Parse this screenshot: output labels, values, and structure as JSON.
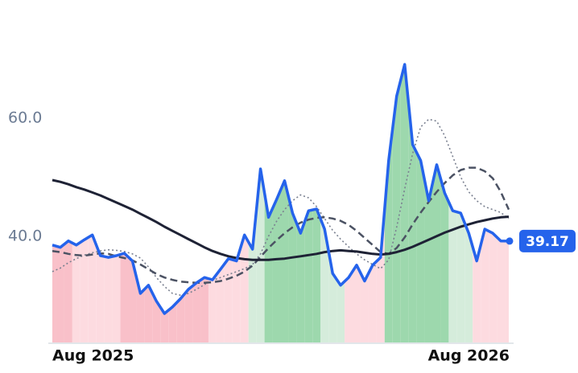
{
  "chart_data": {
    "type": "line",
    "xlim": [
      0,
      57
    ],
    "xticks": [
      {
        "value": 0,
        "label": "Aug 2025"
      },
      {
        "value": 52,
        "label": "Aug 2026"
      }
    ],
    "ylim": [
      22,
      80
    ],
    "yticks": [
      {
        "value": 40,
        "label": "40.0"
      },
      {
        "value": 60,
        "label": "60.0"
      }
    ],
    "grid": false,
    "label_last": true,
    "regime_colors": [
      "#f9c0c9",
      "#f9c0c9",
      "#f9c0c9",
      "#fddbe0",
      "#fddbe0",
      "#fddbe0",
      "#fddbe0",
      "#fddbe0",
      "#fddbe0",
      "#f9c0c9",
      "#f9c0c9",
      "#f9c0c9",
      "#f9c0c9",
      "#f9c0c9",
      "#f9c0c9",
      "#f9c0c9",
      "#f9c0c9",
      "#f9c0c9",
      "#f9c0c9",
      "#f9c0c9",
      "#fddbe0",
      "#fddbe0",
      "#fddbe0",
      "#fddbe0",
      "#fddbe0",
      "#d5ecdb",
      "#d5ecdb",
      "#9dd8ad",
      "#9dd8ad",
      "#9dd8ad",
      "#9dd8ad",
      "#9dd8ad",
      "#9dd8ad",
      "#9dd8ad",
      "#d5ecdb",
      "#d5ecdb",
      "#d5ecdb",
      "#fddbe0",
      "#fddbe0",
      "#fddbe0",
      "#fddbe0",
      "#fddbe0",
      "#9dd8ad",
      "#9dd8ad",
      "#9dd8ad",
      "#9dd8ad",
      "#9dd8ad",
      "#9dd8ad",
      "#9dd8ad",
      "#9dd8ad",
      "#d5ecdb",
      "#d5ecdb",
      "#d5ecdb",
      "#fddbe0",
      "#fddbe0",
      "#fddbe0",
      "#fddbe0",
      "#fddbe0"
    ],
    "series": [
      {
        "color": "#2563eb",
        "style": "solid",
        "width": 3.5,
        "values": [
          38.5,
          38.1,
          39.2,
          38.5,
          39.4,
          40.2,
          36.7,
          36.4,
          36.7,
          37.1,
          35.8,
          30.3,
          31.7,
          29.0,
          26.9,
          28.0,
          29.4,
          31.0,
          32.1,
          33.0,
          32.6,
          34.4,
          36.2,
          35.8,
          40.2,
          37.8,
          51.4,
          43.2,
          46.2,
          49.4,
          43.9,
          40.5,
          44.3,
          44.6,
          41.2,
          33.7,
          31.7,
          33.0,
          35.1,
          32.4,
          35.1,
          36.4,
          52.8,
          63.7,
          69.1,
          55.5,
          52.8,
          46.0,
          52.1,
          47.3,
          44.3,
          43.9,
          40.5,
          35.8,
          41.2,
          40.5,
          39.2,
          39.17
        ]
      },
      {
        "color": "#1e2235",
        "style": "solid",
        "width": 3,
        "values": [
          49.5,
          49.2,
          48.8,
          48.3,
          47.9,
          47.4,
          46.9,
          46.3,
          45.7,
          45.1,
          44.5,
          43.8,
          43.1,
          42.4,
          41.6,
          40.9,
          40.2,
          39.5,
          38.8,
          38.1,
          37.5,
          37.0,
          36.6,
          36.3,
          36.1,
          36.0,
          36.0,
          36.0,
          36.1,
          36.2,
          36.4,
          36.6,
          36.8,
          37.0,
          37.3,
          37.5,
          37.6,
          37.5,
          37.4,
          37.2,
          37.0,
          36.9,
          37.0,
          37.3,
          37.7,
          38.2,
          38.8,
          39.4,
          40.0,
          40.6,
          41.1,
          41.6,
          42.0,
          42.4,
          42.7,
          43.0,
          43.2,
          43.3
        ]
      },
      {
        "color": "#4b5263",
        "style": "dashed",
        "width": 2.5,
        "values": [
          37.5,
          37.3,
          37.0,
          36.8,
          36.7,
          36.9,
          37.1,
          37.0,
          36.6,
          36.3,
          35.9,
          35.2,
          34.4,
          33.6,
          33.0,
          32.6,
          32.3,
          32.2,
          32.1,
          32.1,
          32.2,
          32.4,
          32.8,
          33.3,
          34.0,
          35.0,
          36.5,
          38.0,
          39.3,
          40.5,
          41.5,
          42.3,
          42.8,
          43.1,
          43.2,
          43.0,
          42.6,
          41.9,
          40.9,
          39.7,
          38.5,
          37.3,
          37.0,
          38.0,
          39.8,
          42.0,
          44.0,
          45.8,
          47.5,
          49.0,
          50.3,
          51.2,
          51.6,
          51.6,
          51.0,
          49.8,
          47.5,
          44.5
        ]
      },
      {
        "color": "#7a8090",
        "style": "dotted",
        "width": 1.6,
        "values": [
          34.0,
          34.6,
          35.5,
          36.2,
          36.8,
          37.2,
          37.5,
          37.7,
          37.6,
          37.4,
          37.0,
          36.3,
          34.8,
          33.0,
          31.5,
          30.3,
          30.0,
          30.3,
          31.0,
          31.8,
          32.5,
          33.0,
          33.5,
          34.0,
          34.5,
          35.2,
          37.0,
          40.0,
          42.5,
          44.5,
          46.0,
          47.0,
          46.5,
          45.0,
          43.0,
          41.0,
          39.5,
          38.2,
          37.0,
          36.0,
          35.2,
          34.5,
          36.0,
          41.5,
          48.0,
          54.0,
          58.5,
          59.8,
          59.5,
          57.0,
          53.5,
          50.0,
          47.5,
          46.0,
          45.0,
          44.5,
          44.0,
          43.0
        ]
      }
    ]
  }
}
